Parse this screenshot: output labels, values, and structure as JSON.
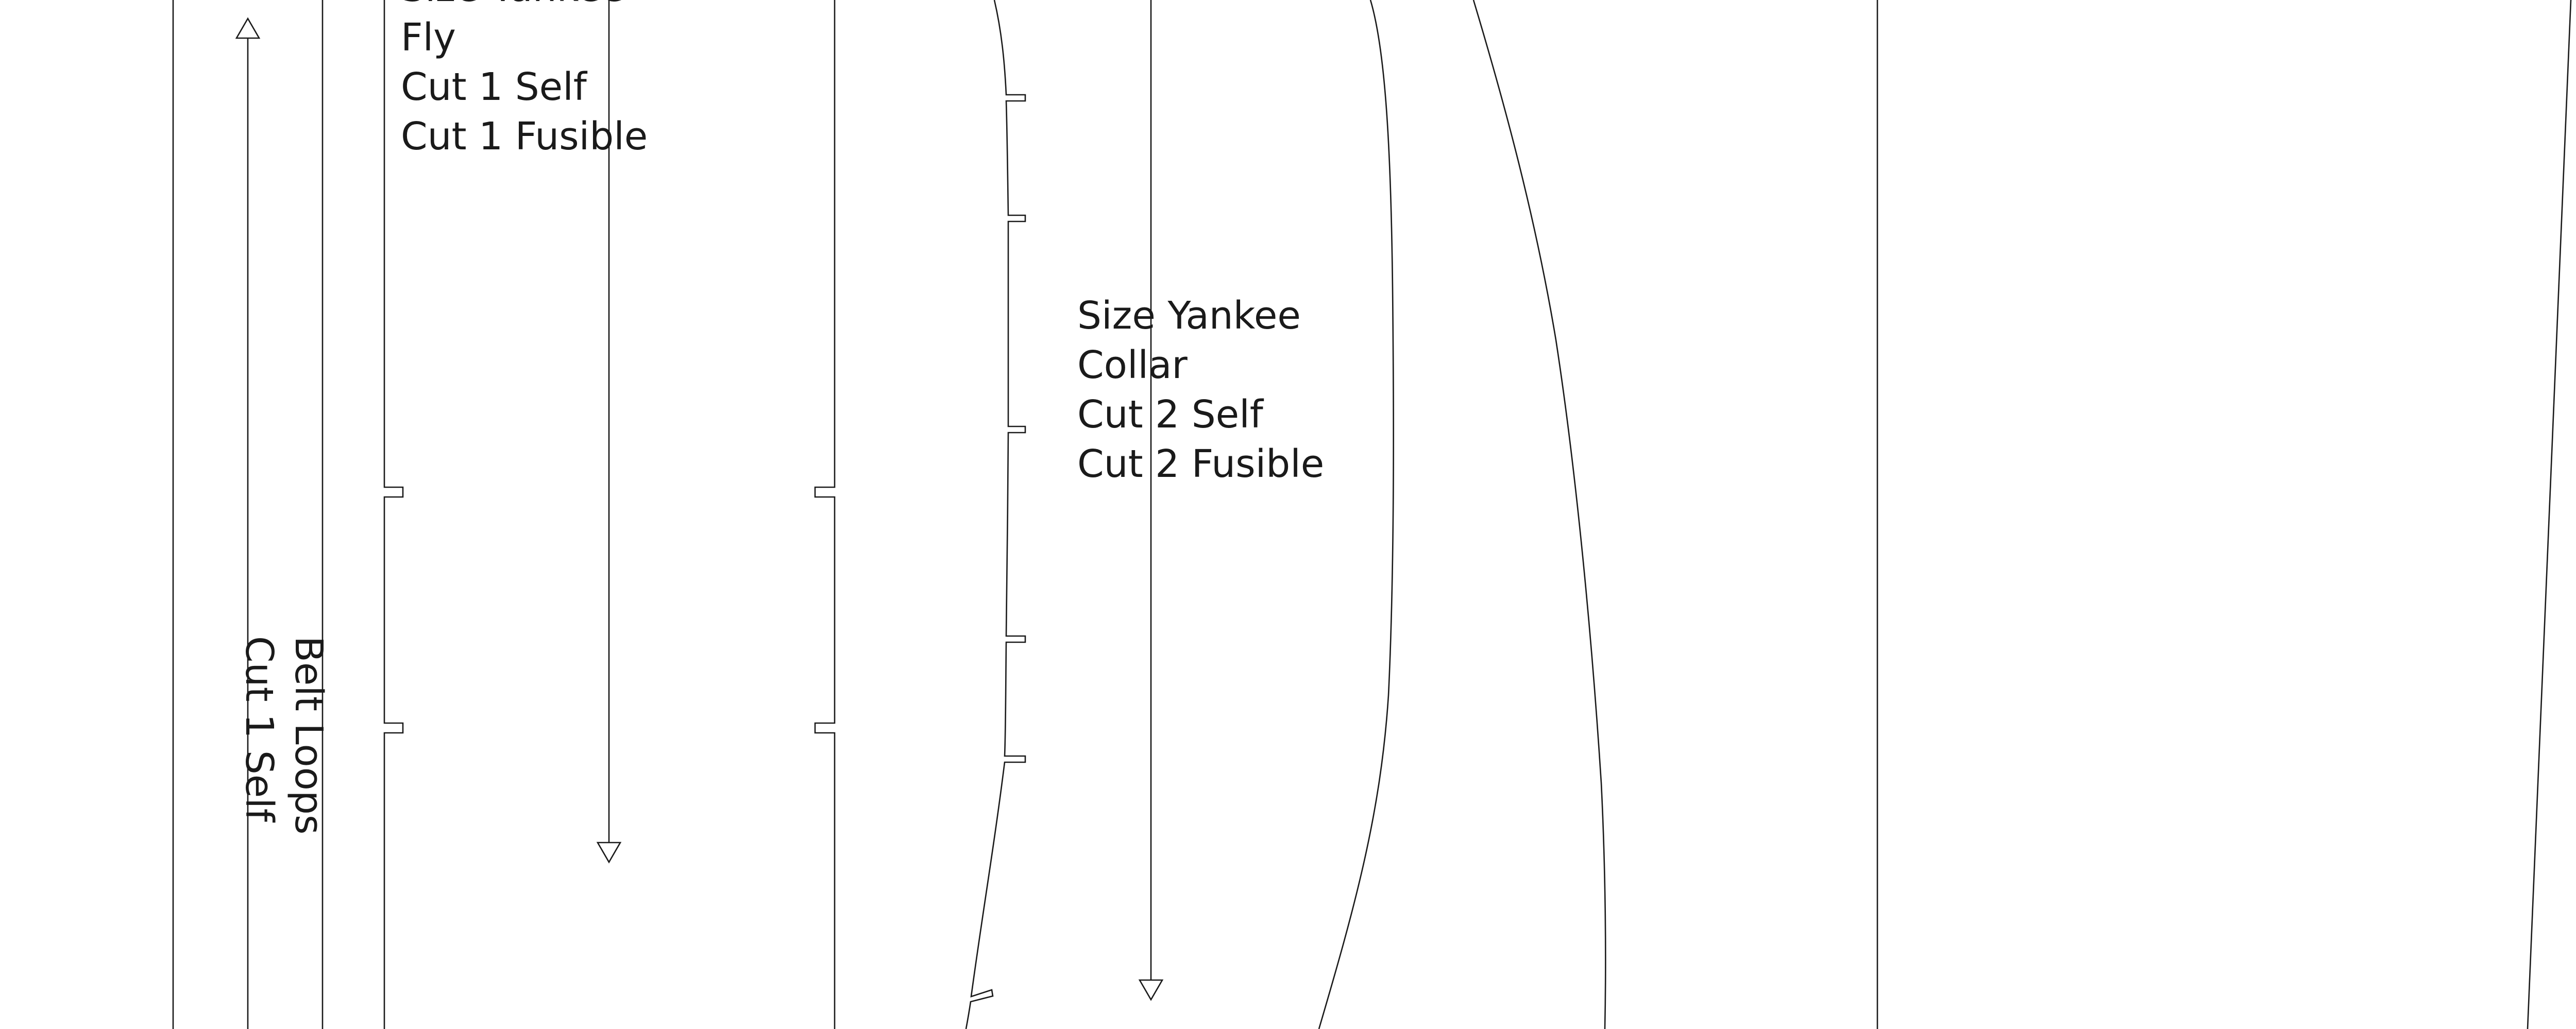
{
  "pieces": {
    "belt_loops": {
      "lines": [
        "Belt Loops",
        "Cut 1 Self"
      ]
    },
    "fly": {
      "lines": [
        "Size Yankee",
        "Fly",
        "Cut 1 Self",
        "Cut 1 Fusible"
      ]
    },
    "collar": {
      "lines": [
        "Size Yankee",
        "Collar",
        "Cut 2 Self",
        "Cut 2 Fusible"
      ]
    }
  },
  "colors": {
    "line": "#1a1a1a",
    "background": "#ffffff"
  }
}
